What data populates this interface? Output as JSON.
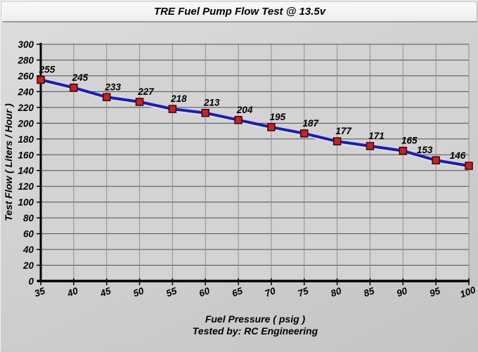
{
  "window": {
    "title": "TRE Fuel Pump Flow Test @ 13.5v"
  },
  "chart_data": {
    "type": "line",
    "title": "TRE Fuel Pump Flow Test @ 13.5v",
    "x": [
      35,
      40,
      45,
      50,
      55,
      60,
      65,
      70,
      75,
      80,
      85,
      90,
      95,
      100
    ],
    "values": [
      255,
      245,
      233,
      227,
      218,
      213,
      204,
      195,
      187,
      177,
      171,
      165,
      153,
      146
    ],
    "series_name": "Test Flow",
    "xlabel": "Fuel Pressure ( psig )",
    "footnote": "Tested by: RC Engineering",
    "ylabel": "Test Flow ( Liters / Hour )",
    "xlim": [
      35,
      100
    ],
    "ylim": [
      0,
      300
    ],
    "ytick_step": 20,
    "xticks": [
      35,
      40,
      45,
      50,
      55,
      60,
      65,
      70,
      75,
      80,
      85,
      90,
      95,
      100
    ],
    "grid": true,
    "legend_position": "none",
    "data_labels_shown": true,
    "colors": {
      "line": "#1d1dae",
      "line_glow": "#dadef0",
      "marker_fill": "#c52323",
      "marker_border": "#380808",
      "grid_h": "#4f4f4f",
      "grid_v": "#8f8f8f",
      "axis": "#000000",
      "text": "#000000",
      "title_bg": "#f4f4f4",
      "plot_bg": "#d3d3d3"
    }
  }
}
